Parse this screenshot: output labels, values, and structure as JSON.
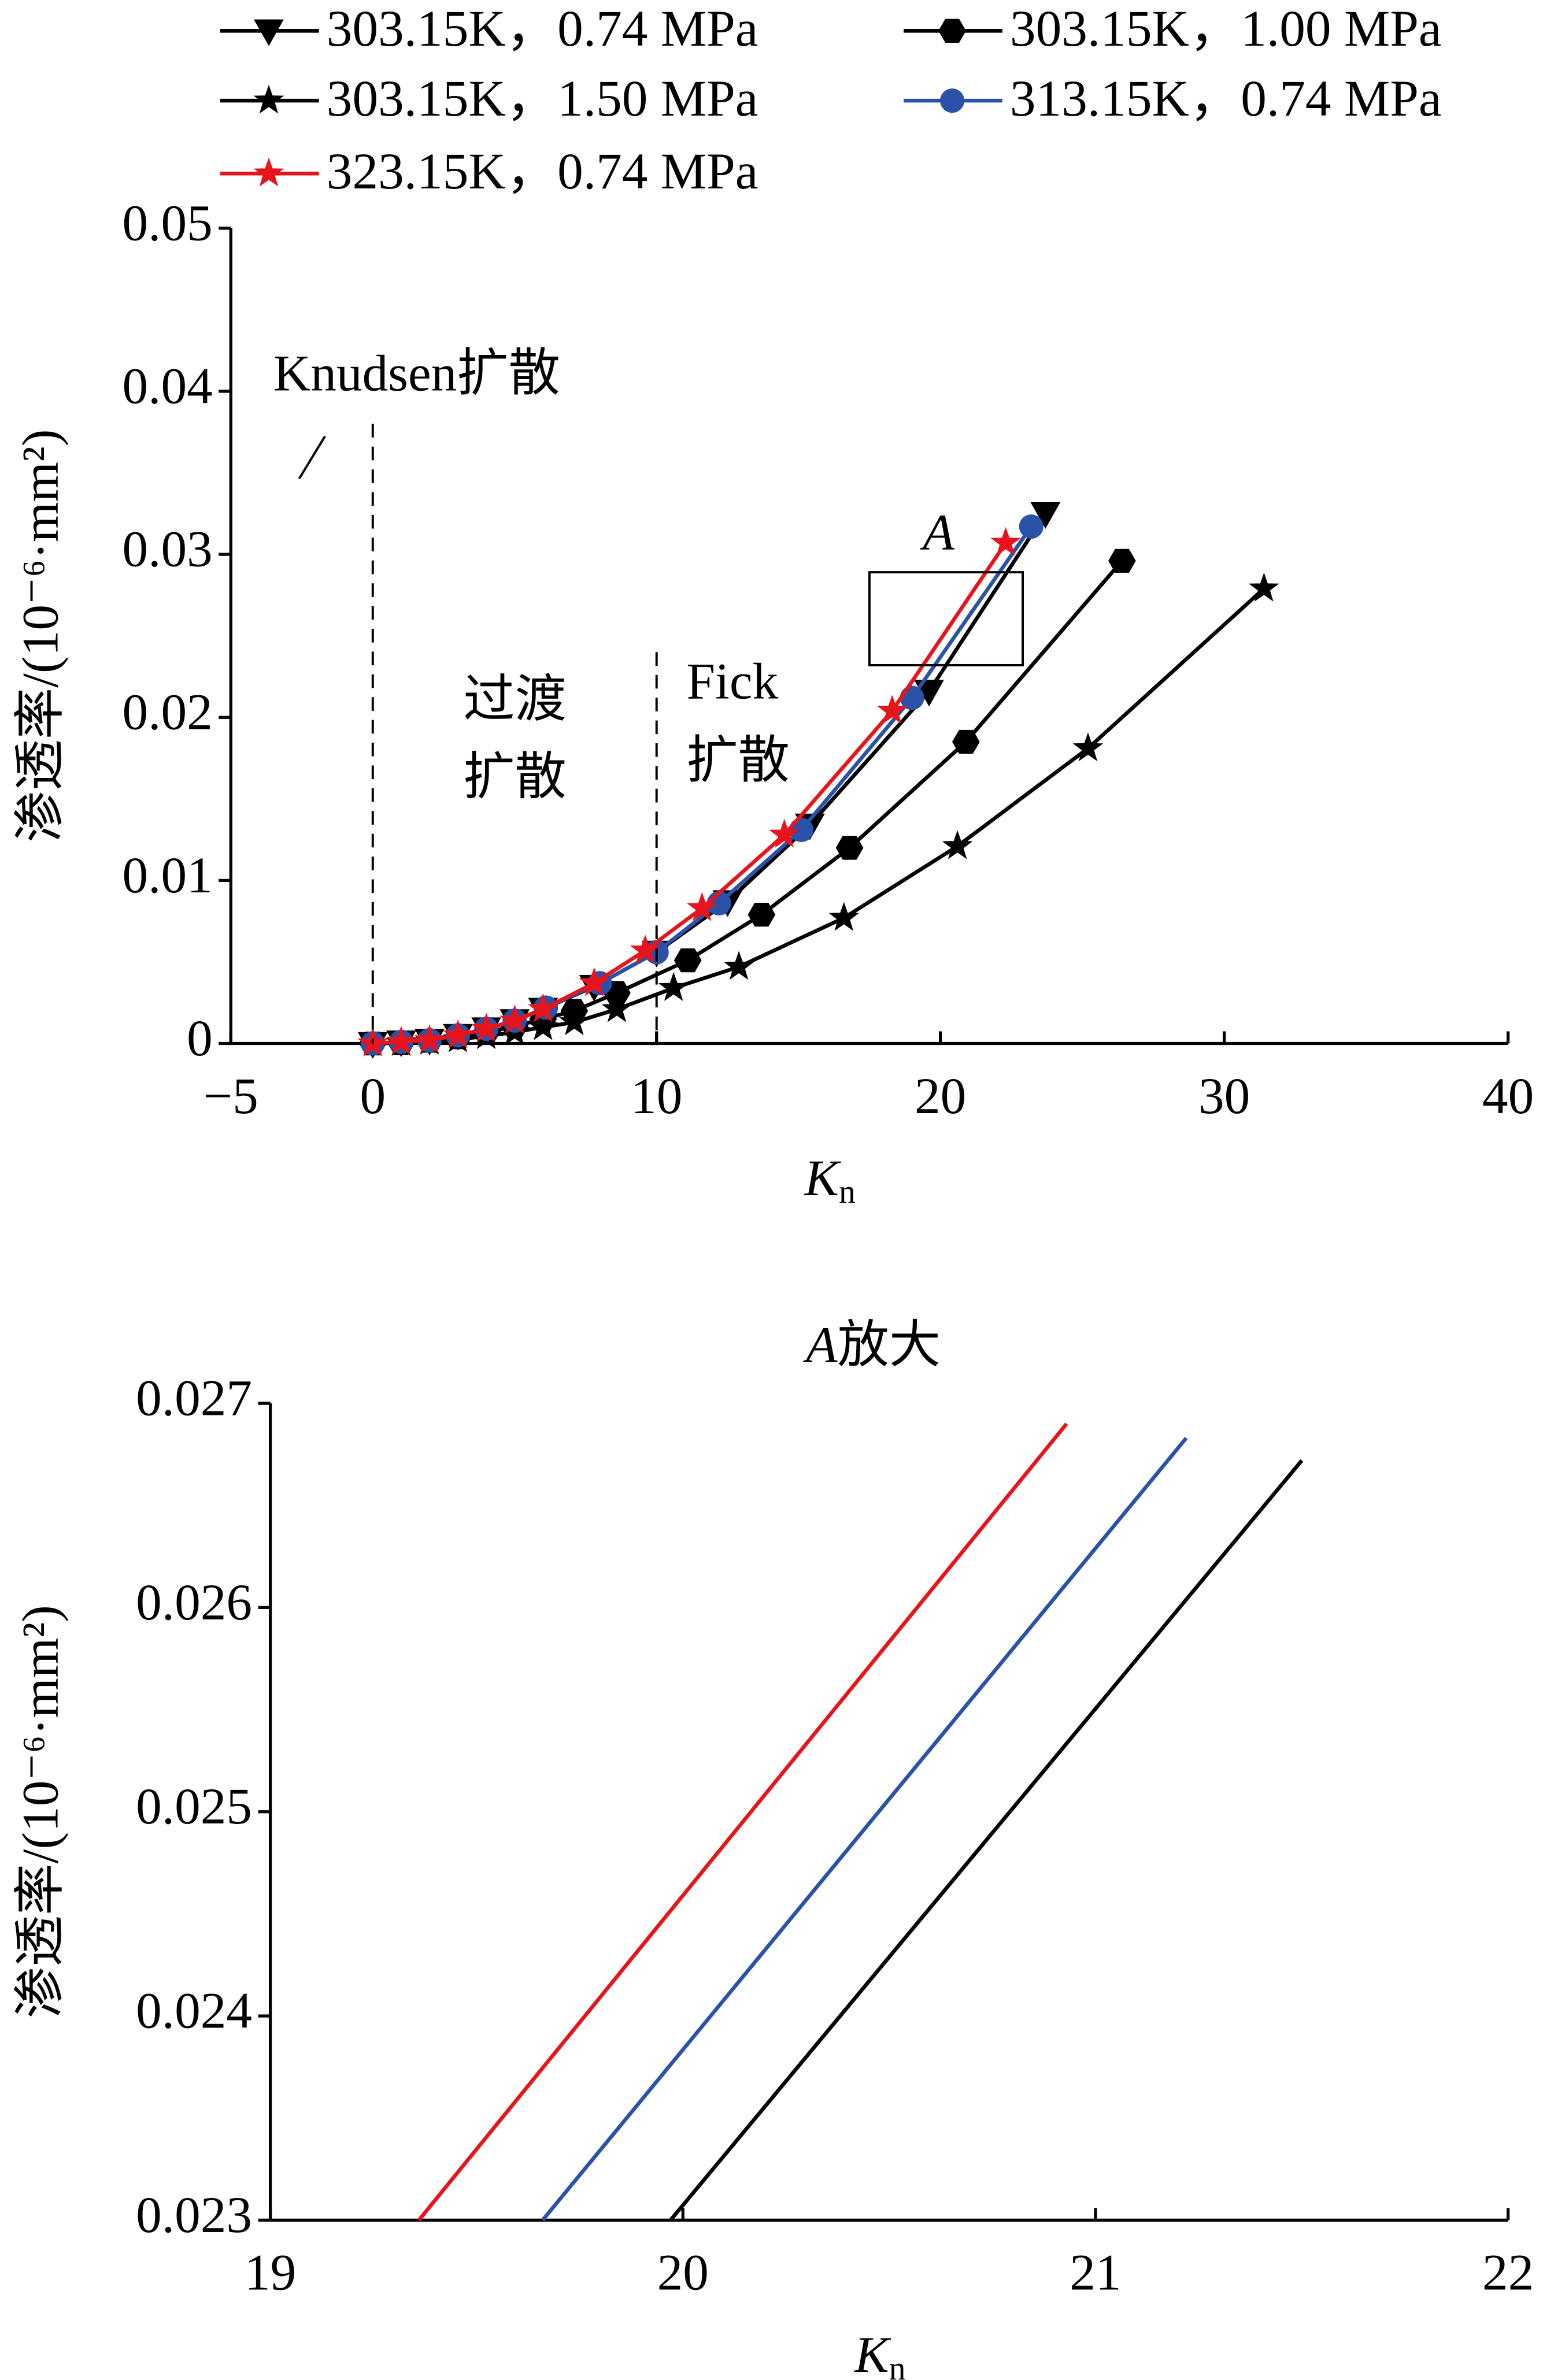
{
  "chart_data": [
    {
      "type": "line",
      "xlabel": "K",
      "xlabel_sub": "n",
      "ylabel": "渗透率/(10⁻⁶·mm²)",
      "xlim": [
        -5,
        40
      ],
      "xticks": [
        {
          "value": -5,
          "label": "−5"
        },
        0,
        10,
        20,
        30,
        40
      ],
      "ylim": [
        0,
        0.05
      ],
      "yticks": [
        0,
        0.01,
        0.02,
        0.03,
        0.04,
        0.05
      ],
      "grid": false,
      "legend": "top",
      "series": [
        {
          "name": "303.15K，0.74 MPa",
          "color": "#000000",
          "marker": "triangle-down",
          "x": [
            0,
            1,
            2,
            3,
            4,
            5,
            6,
            7.8,
            10,
            12.5,
            15.4,
            19.6,
            23.7
          ],
          "values": [
            0,
            0.0001,
            0.0002,
            0.0005,
            0.0009,
            0.0014,
            0.0021,
            0.0035,
            0.0056,
            0.0087,
            0.0134,
            0.0216,
            0.0325
          ]
        },
        {
          "name": "303.15K，1.00 MPa",
          "color": "#000000",
          "marker": "hexagon",
          "x": [
            0,
            1,
            2,
            3,
            4,
            5,
            6,
            7.1,
            8.6,
            11.1,
            13.7,
            16.8,
            20.9,
            26.4
          ],
          "values": [
            0,
            4e-05,
            0.00017,
            0.00038,
            0.00068,
            0.00106,
            0.0015,
            0.002,
            0.0031,
            0.0051,
            0.0079,
            0.012,
            0.0185,
            0.0296
          ]
        },
        {
          "name": "303.15K，1.50 MPa",
          "color": "#000000",
          "marker": "star",
          "x": [
            0,
            1,
            2,
            3,
            4,
            5,
            6,
            7.1,
            8.6,
            10.6,
            12.9,
            16.6,
            20.6,
            25.2,
            31.4
          ],
          "values": [
            0,
            3e-05,
            0.00011,
            0.00025,
            0.00045,
            0.0007,
            0.001,
            0.0013,
            0.0021,
            0.0034,
            0.0047,
            0.0077,
            0.0121,
            0.0181,
            0.0279
          ]
        },
        {
          "name": "313.15K，0.74 MPa",
          "color": "#2a52a8",
          "marker": "circle",
          "x": [
            0,
            1,
            2,
            3,
            4,
            5,
            6.1,
            8,
            10,
            12.2,
            15.1,
            19,
            23.2
          ],
          "values": [
            0,
            0.0001,
            0.0002,
            0.0005,
            0.0009,
            0.0014,
            0.0022,
            0.0037,
            0.0056,
            0.0086,
            0.0131,
            0.0212,
            0.0317
          ]
        },
        {
          "name": "323.15K，0.74 MPa",
          "color": "#e8141c",
          "marker": "star",
          "x": [
            0,
            1,
            2,
            3,
            4,
            5,
            6,
            7.8,
            9.6,
            11.6,
            14.5,
            18.3,
            22.3
          ],
          "values": [
            0,
            0.0001,
            0.0002,
            0.0005,
            0.0009,
            0.0014,
            0.0021,
            0.0037,
            0.0057,
            0.0083,
            0.0128,
            0.0204,
            0.0307
          ]
        }
      ],
      "vlines": [
        {
          "x": 0,
          "top": 0.038
        },
        {
          "x": 10,
          "top": 0.024
        }
      ],
      "zoom_box": {
        "x": [
          17.5,
          22.9
        ],
        "y": [
          0.0232,
          0.0289
        ]
      },
      "annotations": [
        "Knudsen扩散",
        "过渡",
        "扩散",
        "Fick",
        "扩散",
        "A"
      ]
    },
    {
      "type": "line",
      "title": "A",
      "title_suffix": "放大",
      "xlabel": "K",
      "xlabel_sub": "n",
      "ylabel": "渗透率/(10⁻⁶·mm²)",
      "xlim": [
        19,
        22
      ],
      "xticks": [
        19,
        20,
        21,
        22
      ],
      "ylim": [
        0.023,
        0.027
      ],
      "yticks": [
        0.023,
        0.024,
        0.025,
        0.026,
        0.027
      ],
      "grid": false,
      "series": [
        {
          "color": "#e8141c",
          "x": [
            19.36,
            20.93
          ],
          "values": [
            0.023,
            0.0269
          ]
        },
        {
          "color": "#2a52a8",
          "x": [
            19.66,
            21.22
          ],
          "values": [
            0.023,
            0.02683
          ]
        },
        {
          "color": "#000000",
          "x": [
            19.97,
            21.5
          ],
          "values": [
            0.023,
            0.02672
          ]
        }
      ]
    }
  ]
}
